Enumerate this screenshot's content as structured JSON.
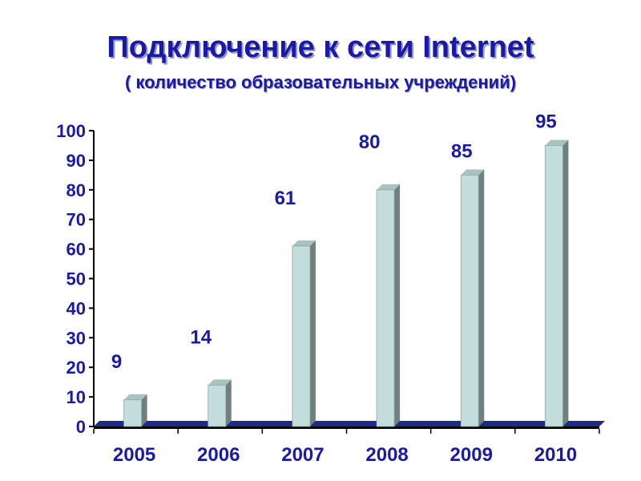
{
  "chart_data": {
    "type": "bar",
    "title": "Подключение к сети Internet",
    "subtitle": "( количество образовательных учреждений)",
    "categories": [
      "2005",
      "2006",
      "2007",
      "2008",
      "2009",
      "2010"
    ],
    "values": [
      9,
      14,
      61,
      80,
      85,
      95
    ],
    "yticks": [
      "0",
      "10",
      "20",
      "30",
      "40",
      "50",
      "60",
      "70",
      "80",
      "90",
      "100"
    ],
    "ylim": [
      0,
      100
    ],
    "grid": false,
    "legend": "none",
    "colors": {
      "text": "#1a1aa8",
      "bar_front": "#c3dcdc",
      "bar_side": "#6f8080",
      "bar_top": "#a9c3c3",
      "axis": "#000000",
      "floor": "#1f2a8a"
    }
  }
}
